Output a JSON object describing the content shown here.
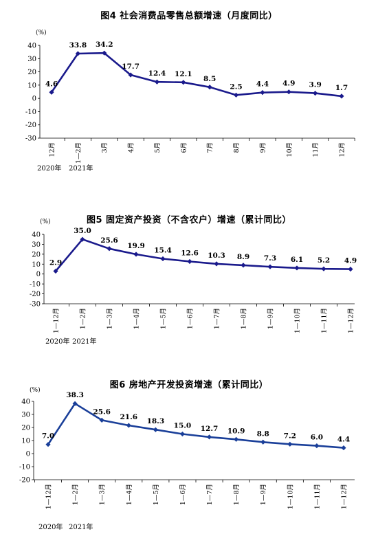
{
  "chart_data": [
    {
      "type": "line",
      "title": "图4   社会消费品零售总额增速（月度同比）",
      "unit": "(%)",
      "categories": [
        "12月",
        "1—2月",
        "3月",
        "4月",
        "5月",
        "6月",
        "7月",
        "8月",
        "9月",
        "10月",
        "11月",
        "12月"
      ],
      "values": [
        4.6,
        33.8,
        34.2,
        17.7,
        12.4,
        12.1,
        8.5,
        2.5,
        4.4,
        4.9,
        3.9,
        1.7
      ],
      "labels": [
        "4.6",
        "33.8",
        "34.2",
        "17.7",
        "12.4",
        "12.1",
        "8.5",
        "2.5",
        "4.4",
        "4.9",
        "3.9",
        "1.7"
      ],
      "ylim": [
        -30,
        40
      ],
      "yticks": [
        40,
        30,
        20,
        10,
        0,
        -10,
        -20,
        -30
      ],
      "years": [
        "2020年",
        "2021年"
      ],
      "color": "#1a1a8c"
    },
    {
      "type": "line",
      "title": "图5   固定资产投资（不含农户）增速（累计同比）",
      "unit": "(%)",
      "categories": [
        "1—12月",
        "1—2月",
        "1—3月",
        "1—4月",
        "1—5月",
        "1—6月",
        "1—7月",
        "1—8月",
        "1—9月",
        "1—10月",
        "1—11月",
        "1—12月"
      ],
      "values": [
        2.9,
        35.0,
        25.6,
        19.9,
        15.4,
        12.6,
        10.3,
        8.9,
        7.3,
        6.1,
        5.2,
        4.9
      ],
      "labels": [
        "2.9",
        "35.0",
        "25.6",
        "19.9",
        "15.4",
        "12.6",
        "10.3",
        "8.9",
        "7.3",
        "6.1",
        "5.2",
        "4.9"
      ],
      "ylim": [
        -30,
        40
      ],
      "yticks": [
        40,
        30,
        20,
        10,
        0,
        -10,
        -20,
        -30
      ],
      "years": [
        "2020年",
        "2021年"
      ],
      "color": "#1a1a8c"
    },
    {
      "type": "line",
      "title": "图6   房地产开发投资增速（累计同比）",
      "unit": "(%)",
      "categories": [
        "1—12月",
        "1—2月",
        "1—3月",
        "1—4月",
        "1—5月",
        "1—6月",
        "1—7月",
        "1—8月",
        "1—9月",
        "1—10月",
        "1—11月",
        "1—12月"
      ],
      "values": [
        7.0,
        38.3,
        25.6,
        21.6,
        18.3,
        15.0,
        12.7,
        10.9,
        8.8,
        7.2,
        6.0,
        4.4
      ],
      "labels": [
        "7.0",
        "38.3",
        "25.6",
        "21.6",
        "18.3",
        "15.0",
        "12.7",
        "10.9",
        "8.8",
        "7.2",
        "6.0",
        "4.4"
      ],
      "ylim": [
        -20,
        40
      ],
      "yticks": [
        40,
        30,
        20,
        10,
        0,
        -10,
        -20
      ],
      "years": [
        "2020年",
        "2021年"
      ],
      "color": "#1a3f99"
    }
  ]
}
